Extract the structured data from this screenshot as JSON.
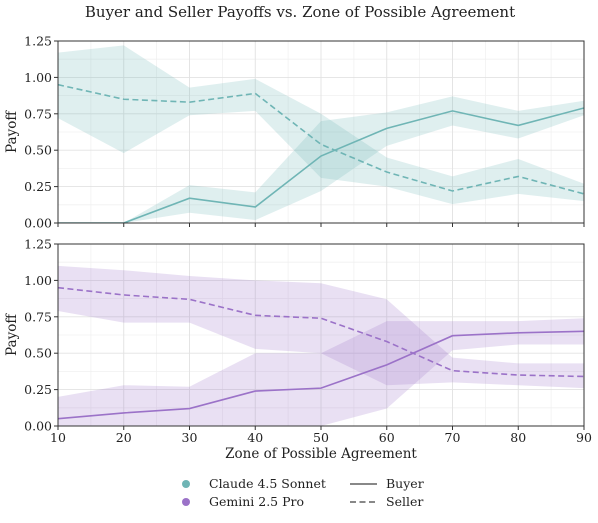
{
  "figure": {
    "title": "Buyer and Seller Payoffs vs. Zone of Possible Agreement"
  },
  "legend": {
    "models": [
      {
        "label": "Claude 4.5 Sonnet",
        "color": "#6fb5b5"
      },
      {
        "label": "Gemini 2.5 Pro",
        "color": "#9b72c8"
      }
    ],
    "roles": [
      {
        "label": "Buyer",
        "style": "solid"
      },
      {
        "label": "Seller",
        "style": "dashed"
      }
    ],
    "placement": "bottom-center"
  },
  "chart_data": [
    {
      "type": "line",
      "model": "Claude 4.5 Sonnet",
      "color": "#6fb5b5",
      "fill_color": "#d9ecea",
      "xlabel": "",
      "ylabel": "Payoff",
      "xlim": [
        10,
        90
      ],
      "ylim": [
        0,
        1.25
      ],
      "x": [
        10,
        20,
        30,
        40,
        50,
        60,
        70,
        80,
        90
      ],
      "xticks": [
        10,
        20,
        30,
        40,
        50,
        60,
        70,
        80,
        90
      ],
      "yticks": [
        0.0,
        0.25,
        0.5,
        0.75,
        1.0,
        1.25
      ],
      "ytick_labels": [
        "0.00",
        "0.25",
        "0.50",
        "0.75",
        "1.00",
        "1.25"
      ],
      "grid": true,
      "series": [
        {
          "role": "Buyer",
          "style": "solid",
          "values": [
            0.0,
            0.0,
            0.17,
            0.11,
            0.46,
            0.65,
            0.77,
            0.67,
            0.79
          ],
          "lower": [
            0.0,
            0.0,
            0.07,
            0.02,
            0.22,
            0.53,
            0.67,
            0.58,
            0.74
          ],
          "upper": [
            0.0,
            0.0,
            0.26,
            0.21,
            0.7,
            0.76,
            0.87,
            0.77,
            0.84
          ]
        },
        {
          "role": "Seller",
          "style": "dashed",
          "values": [
            0.95,
            0.85,
            0.83,
            0.89,
            0.54,
            0.35,
            0.22,
            0.32,
            0.2
          ],
          "lower": [
            0.72,
            0.48,
            0.74,
            0.77,
            0.31,
            0.25,
            0.13,
            0.2,
            0.15
          ],
          "upper": [
            1.17,
            1.22,
            0.93,
            0.99,
            0.75,
            0.45,
            0.32,
            0.44,
            0.27
          ]
        }
      ]
    },
    {
      "type": "line",
      "model": "Gemini 2.5 Pro",
      "color": "#9b72c8",
      "fill_color": "#e6dcf1",
      "xlabel": "Zone of Possible Agreement",
      "ylabel": "Payoff",
      "xlim": [
        10,
        90
      ],
      "ylim": [
        0,
        1.25
      ],
      "x": [
        10,
        20,
        30,
        40,
        50,
        60,
        70,
        80,
        90
      ],
      "xticks": [
        10,
        20,
        30,
        40,
        50,
        60,
        70,
        80,
        90
      ],
      "yticks": [
        0.0,
        0.25,
        0.5,
        0.75,
        1.0,
        1.25
      ],
      "ytick_labels": [
        "0.00",
        "0.25",
        "0.50",
        "0.75",
        "1.00",
        "1.25"
      ],
      "grid": true,
      "series": [
        {
          "role": "Buyer",
          "style": "solid",
          "values": [
            0.05,
            0.09,
            0.12,
            0.24,
            0.26,
            0.42,
            0.62,
            0.64,
            0.65
          ],
          "lower": [
            0.0,
            0.0,
            0.0,
            0.0,
            0.0,
            0.12,
            0.52,
            0.56,
            0.56
          ],
          "upper": [
            0.2,
            0.28,
            0.27,
            0.5,
            0.5,
            0.72,
            0.72,
            0.72,
            0.74
          ]
        },
        {
          "role": "Seller",
          "style": "dashed",
          "values": [
            0.95,
            0.9,
            0.87,
            0.76,
            0.74,
            0.58,
            0.38,
            0.35,
            0.34
          ],
          "lower": [
            0.79,
            0.71,
            0.71,
            0.53,
            0.5,
            0.28,
            0.3,
            0.28,
            0.26
          ],
          "upper": [
            1.1,
            1.07,
            1.03,
            1.0,
            0.98,
            0.87,
            0.47,
            0.43,
            0.43
          ]
        }
      ]
    }
  ]
}
